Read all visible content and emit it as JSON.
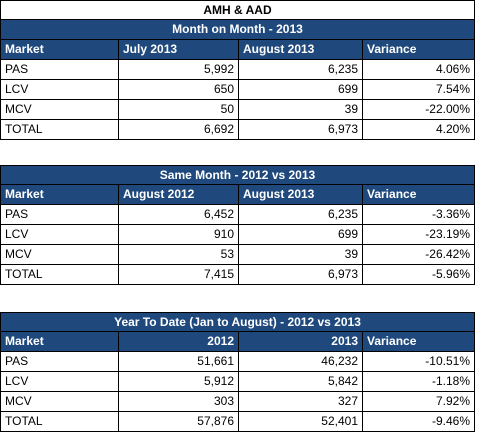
{
  "main_title": "AMH & AAD",
  "sections": [
    {
      "title": "Month on Month - 2013",
      "headers": [
        "Market",
        "July 2013",
        "August 2013",
        "Variance"
      ],
      "rows": [
        [
          "PAS",
          "5,992",
          "6,235",
          "4.06%"
        ],
        [
          "LCV",
          "650",
          "699",
          "7.54%"
        ],
        [
          "MCV",
          "50",
          "39",
          "-22.00%"
        ],
        [
          "TOTAL",
          "6,692",
          "6,973",
          "4.20%"
        ]
      ]
    },
    {
      "title": "Same Month - 2012 vs 2013",
      "headers": [
        "Market",
        "August 2012",
        "August 2013",
        "Variance"
      ],
      "rows": [
        [
          "PAS",
          "6,452",
          "6,235",
          "-3.36%"
        ],
        [
          "LCV",
          "910",
          "699",
          "-23.19%"
        ],
        [
          "MCV",
          "53",
          "39",
          "-26.42%"
        ],
        [
          "TOTAL",
          "7,415",
          "6,973",
          "-5.96%"
        ]
      ]
    },
    {
      "title": "Year To Date (Jan to August) - 2012 vs 2013",
      "headers": [
        "Market",
        "2012",
        "2013",
        "Variance"
      ],
      "rows": [
        [
          "PAS",
          "51,661",
          "46,232",
          "-10.51%"
        ],
        [
          "LCV",
          "5,912",
          "5,842",
          "-1.18%"
        ],
        [
          "MCV",
          "303",
          "327",
          "7.92%"
        ],
        [
          "TOTAL",
          "57,876",
          "52,401",
          "-9.46%"
        ]
      ]
    }
  ]
}
